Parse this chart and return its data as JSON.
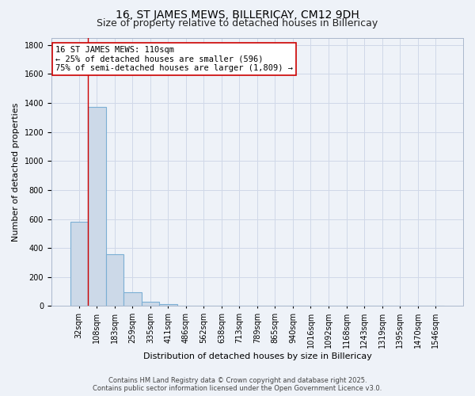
{
  "title": "16, ST JAMES MEWS, BILLERICAY, CM12 9DH",
  "subtitle": "Size of property relative to detached houses in Billericay",
  "xlabel": "Distribution of detached houses by size in Billericay",
  "ylabel": "Number of detached properties",
  "categories": [
    "32sqm",
    "108sqm",
    "183sqm",
    "259sqm",
    "335sqm",
    "411sqm",
    "486sqm",
    "562sqm",
    "638sqm",
    "713sqm",
    "789sqm",
    "865sqm",
    "940sqm",
    "1016sqm",
    "1092sqm",
    "1168sqm",
    "1243sqm",
    "1319sqm",
    "1395sqm",
    "1470sqm",
    "1546sqm"
  ],
  "values": [
    580,
    1375,
    355,
    93,
    30,
    15,
    5,
    2,
    0,
    0,
    0,
    0,
    0,
    0,
    0,
    0,
    0,
    0,
    0,
    0,
    0
  ],
  "bar_color": "#ccd9e8",
  "bar_edge_color": "#7bafd4",
  "bar_linewidth": 0.8,
  "grid_color": "#d0d8e8",
  "background_color": "#eef2f8",
  "vline_color": "#cc0000",
  "annotation_text": "16 ST JAMES MEWS: 110sqm\n← 25% of detached houses are smaller (596)\n75% of semi-detached houses are larger (1,809) →",
  "annotation_box_color": "#ffffff",
  "annotation_box_edgecolor": "#cc0000",
  "ylim": [
    0,
    1850
  ],
  "yticks": [
    0,
    200,
    400,
    600,
    800,
    1000,
    1200,
    1400,
    1600,
    1800
  ],
  "title_fontsize": 10,
  "subtitle_fontsize": 9,
  "xlabel_fontsize": 8,
  "ylabel_fontsize": 8,
  "tick_fontsize": 7,
  "annotation_fontsize": 7.5,
  "footer_text": "Contains HM Land Registry data © Crown copyright and database right 2025.\nContains public sector information licensed under the Open Government Licence v3.0.",
  "footer_fontsize": 6
}
